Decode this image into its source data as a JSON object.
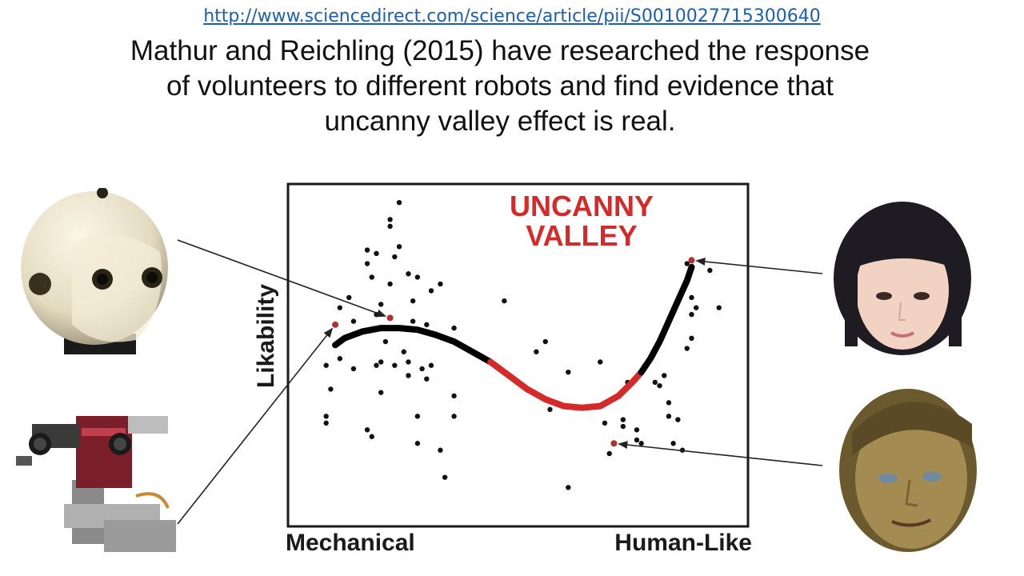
{
  "slide": {
    "link": "http://www.sciencedirect.com/science/article/pii/S0010027715300640",
    "headline_lines": [
      "Mathur and Reichling (2015) have researched the response",
      "of volunteers to different robots and find evidence that",
      "uncanny valley effect is real."
    ]
  },
  "chart_data": {
    "type": "scatter",
    "annotation": [
      "UNCANNY",
      "VALLEY"
    ],
    "ylabel": "Likability",
    "x_tick_labels": [
      "Mechanical",
      "Human-Like"
    ],
    "xlim": [
      0,
      100
    ],
    "ylim": [
      -100,
      100
    ],
    "grid": false,
    "colors": {
      "fit_normal": "#000000",
      "fit_valley": "#d42a2a",
      "annotation": "#d42a2a",
      "highlight_point": "#b03030"
    },
    "scatter_points": [
      [
        24,
        90
      ],
      [
        22,
        80
      ],
      [
        22,
        76
      ],
      [
        24,
        64
      ],
      [
        17,
        62
      ],
      [
        19,
        60
      ],
      [
        23,
        58
      ],
      [
        17,
        54
      ],
      [
        26,
        48
      ],
      [
        18,
        46
      ],
      [
        22,
        42
      ],
      [
        28,
        46
      ],
      [
        31,
        38
      ],
      [
        33,
        42
      ],
      [
        27,
        32
      ],
      [
        20,
        30
      ],
      [
        13,
        34
      ],
      [
        11,
        28
      ],
      [
        19,
        24
      ],
      [
        14,
        20
      ],
      [
        27,
        20
      ],
      [
        30,
        18
      ],
      [
        36,
        16
      ],
      [
        21,
        8
      ],
      [
        25,
        2
      ],
      [
        11,
        -2
      ],
      [
        20,
        -4
      ],
      [
        19,
        -6
      ],
      [
        23,
        -6
      ],
      [
        26,
        -4
      ],
      [
        29,
        -8
      ],
      [
        31,
        -6
      ],
      [
        14,
        -8
      ],
      [
        8,
        -6
      ],
      [
        26,
        -12
      ],
      [
        30,
        -14
      ],
      [
        9,
        -20
      ],
      [
        20,
        -22
      ],
      [
        36,
        -24
      ],
      [
        8,
        -36
      ],
      [
        8,
        -40
      ],
      [
        28,
        -36
      ],
      [
        36,
        -36
      ],
      [
        17,
        -44
      ],
      [
        18,
        -48
      ],
      [
        28,
        -52
      ],
      [
        33,
        -56
      ],
      [
        34,
        -72
      ],
      [
        47,
        32
      ],
      [
        56,
        8
      ],
      [
        54,
        2
      ],
      [
        61,
        -10
      ],
      [
        57,
        -32
      ],
      [
        61,
        -30
      ],
      [
        68,
        -4
      ],
      [
        70,
        -58
      ],
      [
        61,
        -78
      ],
      [
        74,
        -16
      ],
      [
        69,
        -40
      ],
      [
        73,
        -38
      ],
      [
        73,
        -42
      ],
      [
        76,
        -44
      ],
      [
        76,
        -50
      ],
      [
        77,
        -52
      ],
      [
        80,
        -16
      ],
      [
        82,
        -12
      ],
      [
        81,
        -18
      ],
      [
        83,
        -28
      ],
      [
        83,
        -36
      ],
      [
        84,
        -52
      ],
      [
        86,
        -56
      ],
      [
        85,
        -38
      ],
      [
        87,
        4
      ],
      [
        88,
        10
      ],
      [
        88,
        34
      ],
      [
        88,
        24
      ],
      [
        89,
        28
      ],
      [
        87,
        54
      ],
      [
        92,
        50
      ],
      [
        94,
        28
      ]
    ],
    "fit_curve": {
      "black_segment_1": [
        [
          10,
          6
        ],
        [
          12,
          10
        ],
        [
          16,
          14
        ],
        [
          20,
          16
        ],
        [
          24,
          16
        ],
        [
          28,
          15
        ],
        [
          32,
          12
        ],
        [
          36,
          8
        ],
        [
          40,
          2
        ],
        [
          44,
          -4
        ]
      ],
      "red_segment": [
        [
          44,
          -4
        ],
        [
          48,
          -12
        ],
        [
          52,
          -20
        ],
        [
          56,
          -26
        ],
        [
          60,
          -30
        ],
        [
          64,
          -31
        ],
        [
          68,
          -30
        ],
        [
          72,
          -24
        ],
        [
          75,
          -16
        ],
        [
          77,
          -10
        ]
      ],
      "black_segment_2": [
        [
          77,
          -10
        ],
        [
          79,
          -2
        ],
        [
          81,
          8
        ],
        [
          83,
          20
        ],
        [
          85,
          32
        ],
        [
          87,
          44
        ],
        [
          88,
          52
        ]
      ]
    },
    "highlighted_points": [
      [
        10,
        18
      ],
      [
        22,
        22
      ],
      [
        88,
        56
      ],
      [
        71,
        -52
      ]
    ]
  }
}
